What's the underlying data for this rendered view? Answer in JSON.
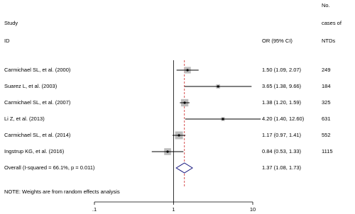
{
  "chart_data": {
    "type": "forest",
    "header": {
      "study": "Study",
      "id": "ID",
      "estimate": "OR (95% CI)",
      "cases": [
        "No.",
        "cases of",
        "NTDs"
      ]
    },
    "studies": [
      {
        "name": "Carmichael SL, et al.  (2000)",
        "or": 1.5,
        "ci": [
          1.09,
          2.07
        ],
        "label": "1.50 (1.09, 2.07)",
        "cases": 249,
        "weight": 18
      },
      {
        "name": "Suarez L, et al.  (2003)",
        "or": 3.65,
        "ci": [
          1.38,
          9.66
        ],
        "label": "3.65 (1.38, 9.66)",
        "cases": 184,
        "weight": 7
      },
      {
        "name": "Carmichael SL, et al.  (2007)",
        "or": 1.38,
        "ci": [
          1.2,
          1.59
        ],
        "label": "1.38 (1.20, 1.59)",
        "cases": 325,
        "weight": 23
      },
      {
        "name": "Li Z, et al.  (2013)",
        "or": 4.2,
        "ci": [
          1.4,
          12.6
        ],
        "label": "4.20 (1.40, 12.60)",
        "cases": 631,
        "weight": 6
      },
      {
        "name": "Carmichael SL, et al.  (2014)",
        "or": 1.17,
        "ci": [
          0.97,
          1.41
        ],
        "label": "1.17 (0.97, 1.41)",
        "cases": 552,
        "weight": 26
      },
      {
        "name": "Ingstrup KG, et al.  (2016)",
        "or": 0.84,
        "ci": [
          0.53,
          1.33
        ],
        "label": "0.84 (0.53, 1.33)",
        "cases": 1115,
        "weight": 20
      }
    ],
    "overall": {
      "name": "Overall  (I-squared = 66.1%, p = 0.011)",
      "or": 1.37,
      "ci": [
        1.08,
        1.73
      ],
      "label": "1.37 (1.08, 1.73)"
    },
    "note": "NOTE: Weights are from random effects analysis",
    "log_x": true,
    "reference_line": 1,
    "xlim": [
      0.1,
      10
    ],
    "xticks": [
      {
        "value": 0.1,
        "label": ".1"
      },
      1,
      10
    ],
    "square_color": "#bdbdbd",
    "diamond_color": "#1a1a80",
    "overall_line_color": "#cc2222"
  }
}
